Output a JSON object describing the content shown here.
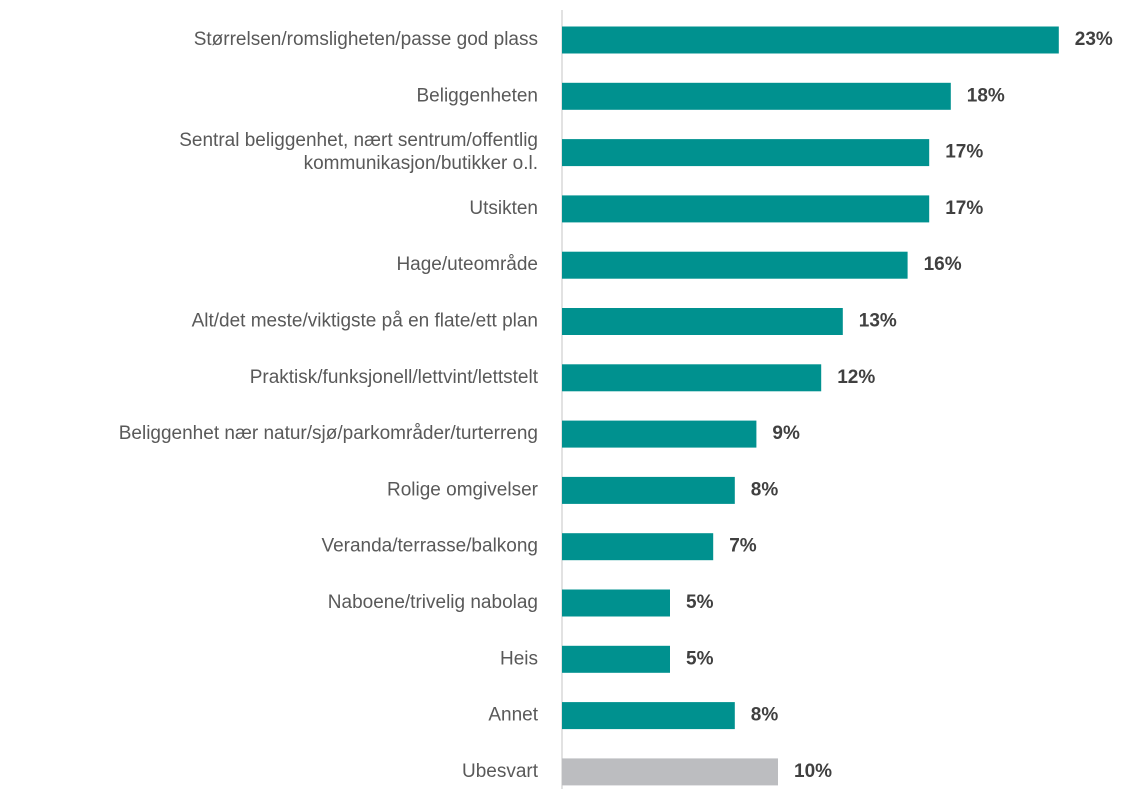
{
  "chart_data": {
    "type": "barh",
    "categories": [
      "Størrelsen/romsligheten/passe god plass",
      "Beliggenheten",
      "Sentral beliggenhet, nært sentrum/offentlig\nkommunikasjon/butikker o.l.",
      "Utsikten",
      "Hage/uteområde",
      "Alt/det meste/viktigste på en flate/ett plan",
      "Praktisk/funksjonell/lettvint/lettstelt",
      "Beliggenhet nær natur/sjø/parkområder/turterreng",
      "Rolige omgivelser",
      "Veranda/terrasse/balkong",
      "Naboene/trivelig nabolag",
      "Heis",
      "Annet",
      "Ubesvart"
    ],
    "values": [
      23,
      18,
      17,
      17,
      16,
      13,
      12,
      9,
      8,
      7,
      5,
      5,
      8,
      10
    ],
    "value_labels": [
      "23%",
      "18%",
      "17%",
      "17%",
      "16%",
      "13%",
      "12%",
      "9%",
      "8%",
      "7%",
      "5%",
      "5%",
      "8%",
      "10%"
    ],
    "colors": [
      "#00918f",
      "#00918f",
      "#00918f",
      "#00918f",
      "#00918f",
      "#00918f",
      "#00918f",
      "#00918f",
      "#00918f",
      "#00918f",
      "#00918f",
      "#00918f",
      "#00918f",
      "#bcbdc0"
    ],
    "xlim": [
      0,
      25
    ]
  }
}
